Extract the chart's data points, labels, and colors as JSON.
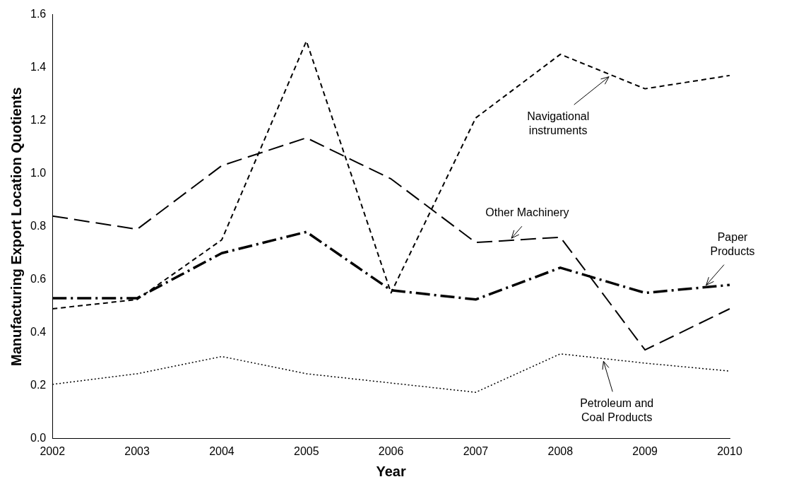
{
  "chart_data": {
    "type": "line",
    "xlabel": "Year",
    "ylabel": "Manufacturing Export Location Quotients",
    "categories": [
      "2002",
      "2003",
      "2004",
      "2005",
      "2006",
      "2007",
      "2008",
      "2009",
      "2010"
    ],
    "series": [
      {
        "name": "Navigational instruments",
        "color": "#000000",
        "line_style": "dashed",
        "values": [
          0.49,
          0.525,
          0.75,
          1.5,
          0.55,
          1.21,
          1.45,
          1.32,
          1.37
        ]
      },
      {
        "name": "Other Machinery",
        "color": "#000000",
        "line_style": "dashed",
        "values": [
          0.84,
          0.79,
          1.03,
          1.135,
          0.98,
          0.74,
          0.76,
          0.335,
          0.49
        ]
      },
      {
        "name": "Paper Products",
        "color": "#000000",
        "line_style": "dashed",
        "values": [
          0.53,
          0.53,
          0.7,
          0.78,
          0.56,
          0.525,
          0.645,
          0.55,
          0.58
        ]
      },
      {
        "name": "Petroleum and Coal Products",
        "color": "#000000",
        "line_style": "dotted",
        "values": [
          0.205,
          0.245,
          0.31,
          0.245,
          0.21,
          0.175,
          0.32,
          0.285,
          0.255
        ]
      }
    ],
    "ylim": [
      0,
      1.6
    ],
    "yticks": [
      {
        "value": 0,
        "label": "0.0"
      },
      {
        "value": 0.2,
        "label": "0.2"
      },
      {
        "value": 0.4,
        "label": "0.4"
      },
      {
        "value": 0.6,
        "label": "0.6"
      },
      {
        "value": 0.8,
        "label": "0.8"
      },
      {
        "value": 1,
        "label": "1.0"
      },
      {
        "value": 1.2,
        "label": "1.2"
      },
      {
        "value": 1.4,
        "label": "1.4"
      },
      {
        "value": 1.6,
        "label": "1.6"
      }
    ],
    "grid": false,
    "legend": false,
    "marker": "none"
  }
}
